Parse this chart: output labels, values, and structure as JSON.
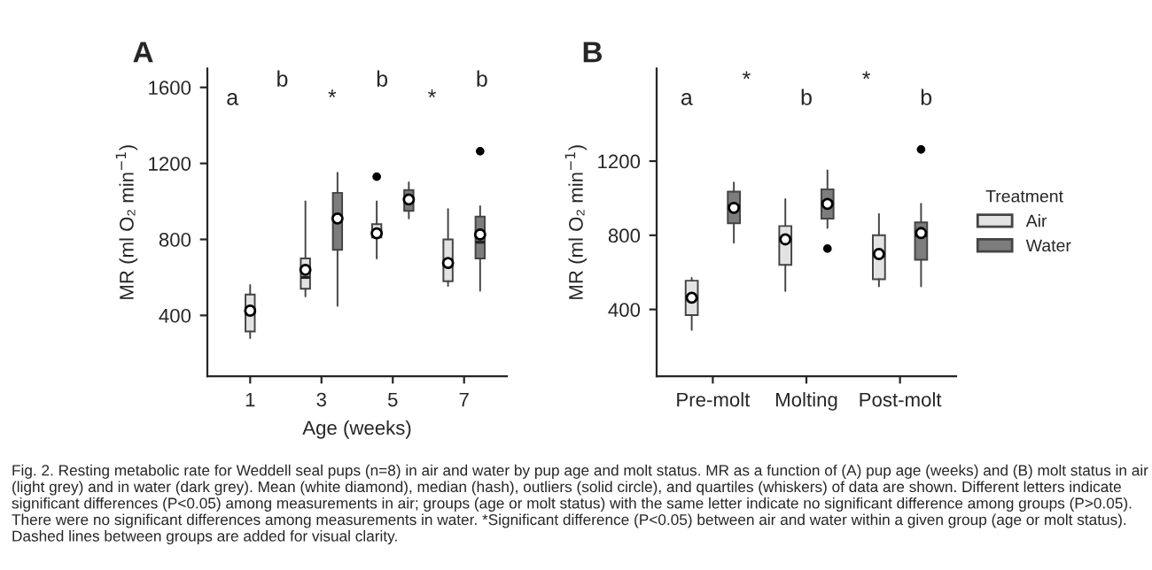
{
  "chart_data": [
    {
      "type": "box",
      "title": "A",
      "xlabel": "Age (weeks)",
      "ylabel": "MR (ml O₂ min$^{−1}$)",
      "categories": [
        "1",
        "3",
        "5",
        "7"
      ],
      "ylim": [
        80,
        1700
      ],
      "yticks": [
        400,
        800,
        1200,
        1600
      ],
      "grid": false,
      "series": [
        {
          "color": "#e3e3e3",
          "boxes": [
            {
              "low": 280,
              "q1": 315,
              "median": 420,
              "q3": 510,
              "high": 560,
              "mean": 425
            },
            {
              "low": 500,
              "q1": 540,
              "median": 600,
              "q3": 700,
              "high": 1000,
              "mean": 640
            },
            {
              "low": 700,
              "q1": 810,
              "median": 830,
              "q3": 880,
              "high": 1000,
              "mean": 832,
              "outliers": [
                1130
              ]
            },
            {
              "low": 555,
              "q1": 580,
              "median": 670,
              "q3": 800,
              "high": 960,
              "mean": 676
            }
          ]
        },
        {
          "color": "#7d7d7d",
          "boxes": [
            null,
            {
              "low": 450,
              "q1": 745,
              "median": 900,
              "q3": 1045,
              "high": 1150,
              "mean": 910
            },
            {
              "low": 910,
              "q1": 950,
              "median": 1000,
              "q3": 1060,
              "high": 1100,
              "mean": 1010
            },
            {
              "low": 530,
              "q1": 700,
              "median": 785,
              "q3": 920,
              "high": 975,
              "mean": 826,
              "outliers": [
                1264
              ]
            }
          ]
        }
      ],
      "annotations": [
        "a",
        "b",
        "*",
        "b",
        "*",
        "b"
      ]
    },
    {
      "type": "other",
      "annotations": [
        "Fig. 2. Resting metabolic rate for Weddell seal pups (n=8) in air and water by pup age and molt status. MR as a function of (A) pup age (weeks) and (B) molt status in air (light grey) and in water (dark grey). Mean (white diamond), median (hash), outliers (solid circle), and quartiles (whiskers) of data are shown. Different letters indicate significant differences (P<0.05) among measurements in air; groups (age or molt status) with the same letter indicate no significant difference among groups (P>0.05). There were no significant differences among measurements in water. *Significant difference (P<0.05) between air and water within a given group (age or molt status). Dashed lines between groups are added for visual clarity."
      ]
    },
    {
      "type": "box",
      "title": "B",
      "ylabel": "MR (ml O₂ min$^{−1}$)",
      "legend_title": "Treatment",
      "categories": [
        "Pre-molt",
        "Molting",
        "Post-molt"
      ],
      "ylim": [
        40,
        1700
      ],
      "yticks": [
        400,
        800,
        1200
      ],
      "grid": false,
      "legend": "right",
      "series": [
        {
          "name": "Air",
          "color": "#e3e3e3",
          "boxes": [
            {
              "low": 290,
              "q1": 370,
              "median": 460,
              "q3": 555,
              "high": 570,
              "mean": 463
            },
            {
              "low": 500,
              "q1": 640,
              "median": 778,
              "q3": 850,
              "high": 995,
              "mean": 778
            },
            {
              "low": 525,
              "q1": 563,
              "median": 700,
              "q3": 800,
              "high": 915,
              "mean": 699
            }
          ]
        },
        {
          "name": "Water",
          "color": "#7d7d7d",
          "boxes": [
            {
              "low": 760,
              "q1": 865,
              "median": 960,
              "q3": 1035,
              "high": 1085,
              "mean": 948
            },
            {
              "low": 840,
              "q1": 890,
              "median": 980,
              "q3": 1048,
              "high": 1150,
              "mean": 969,
              "outliers": [
                728
              ]
            },
            {
              "low": 525,
              "q1": 668,
              "median": 800,
              "q3": 870,
              "high": 970,
              "mean": 812,
              "outliers": [
                1263
              ]
            }
          ]
        }
      ],
      "annotations": [
        "a",
        "*",
        "b",
        "*",
        "b"
      ]
    }
  ]
}
